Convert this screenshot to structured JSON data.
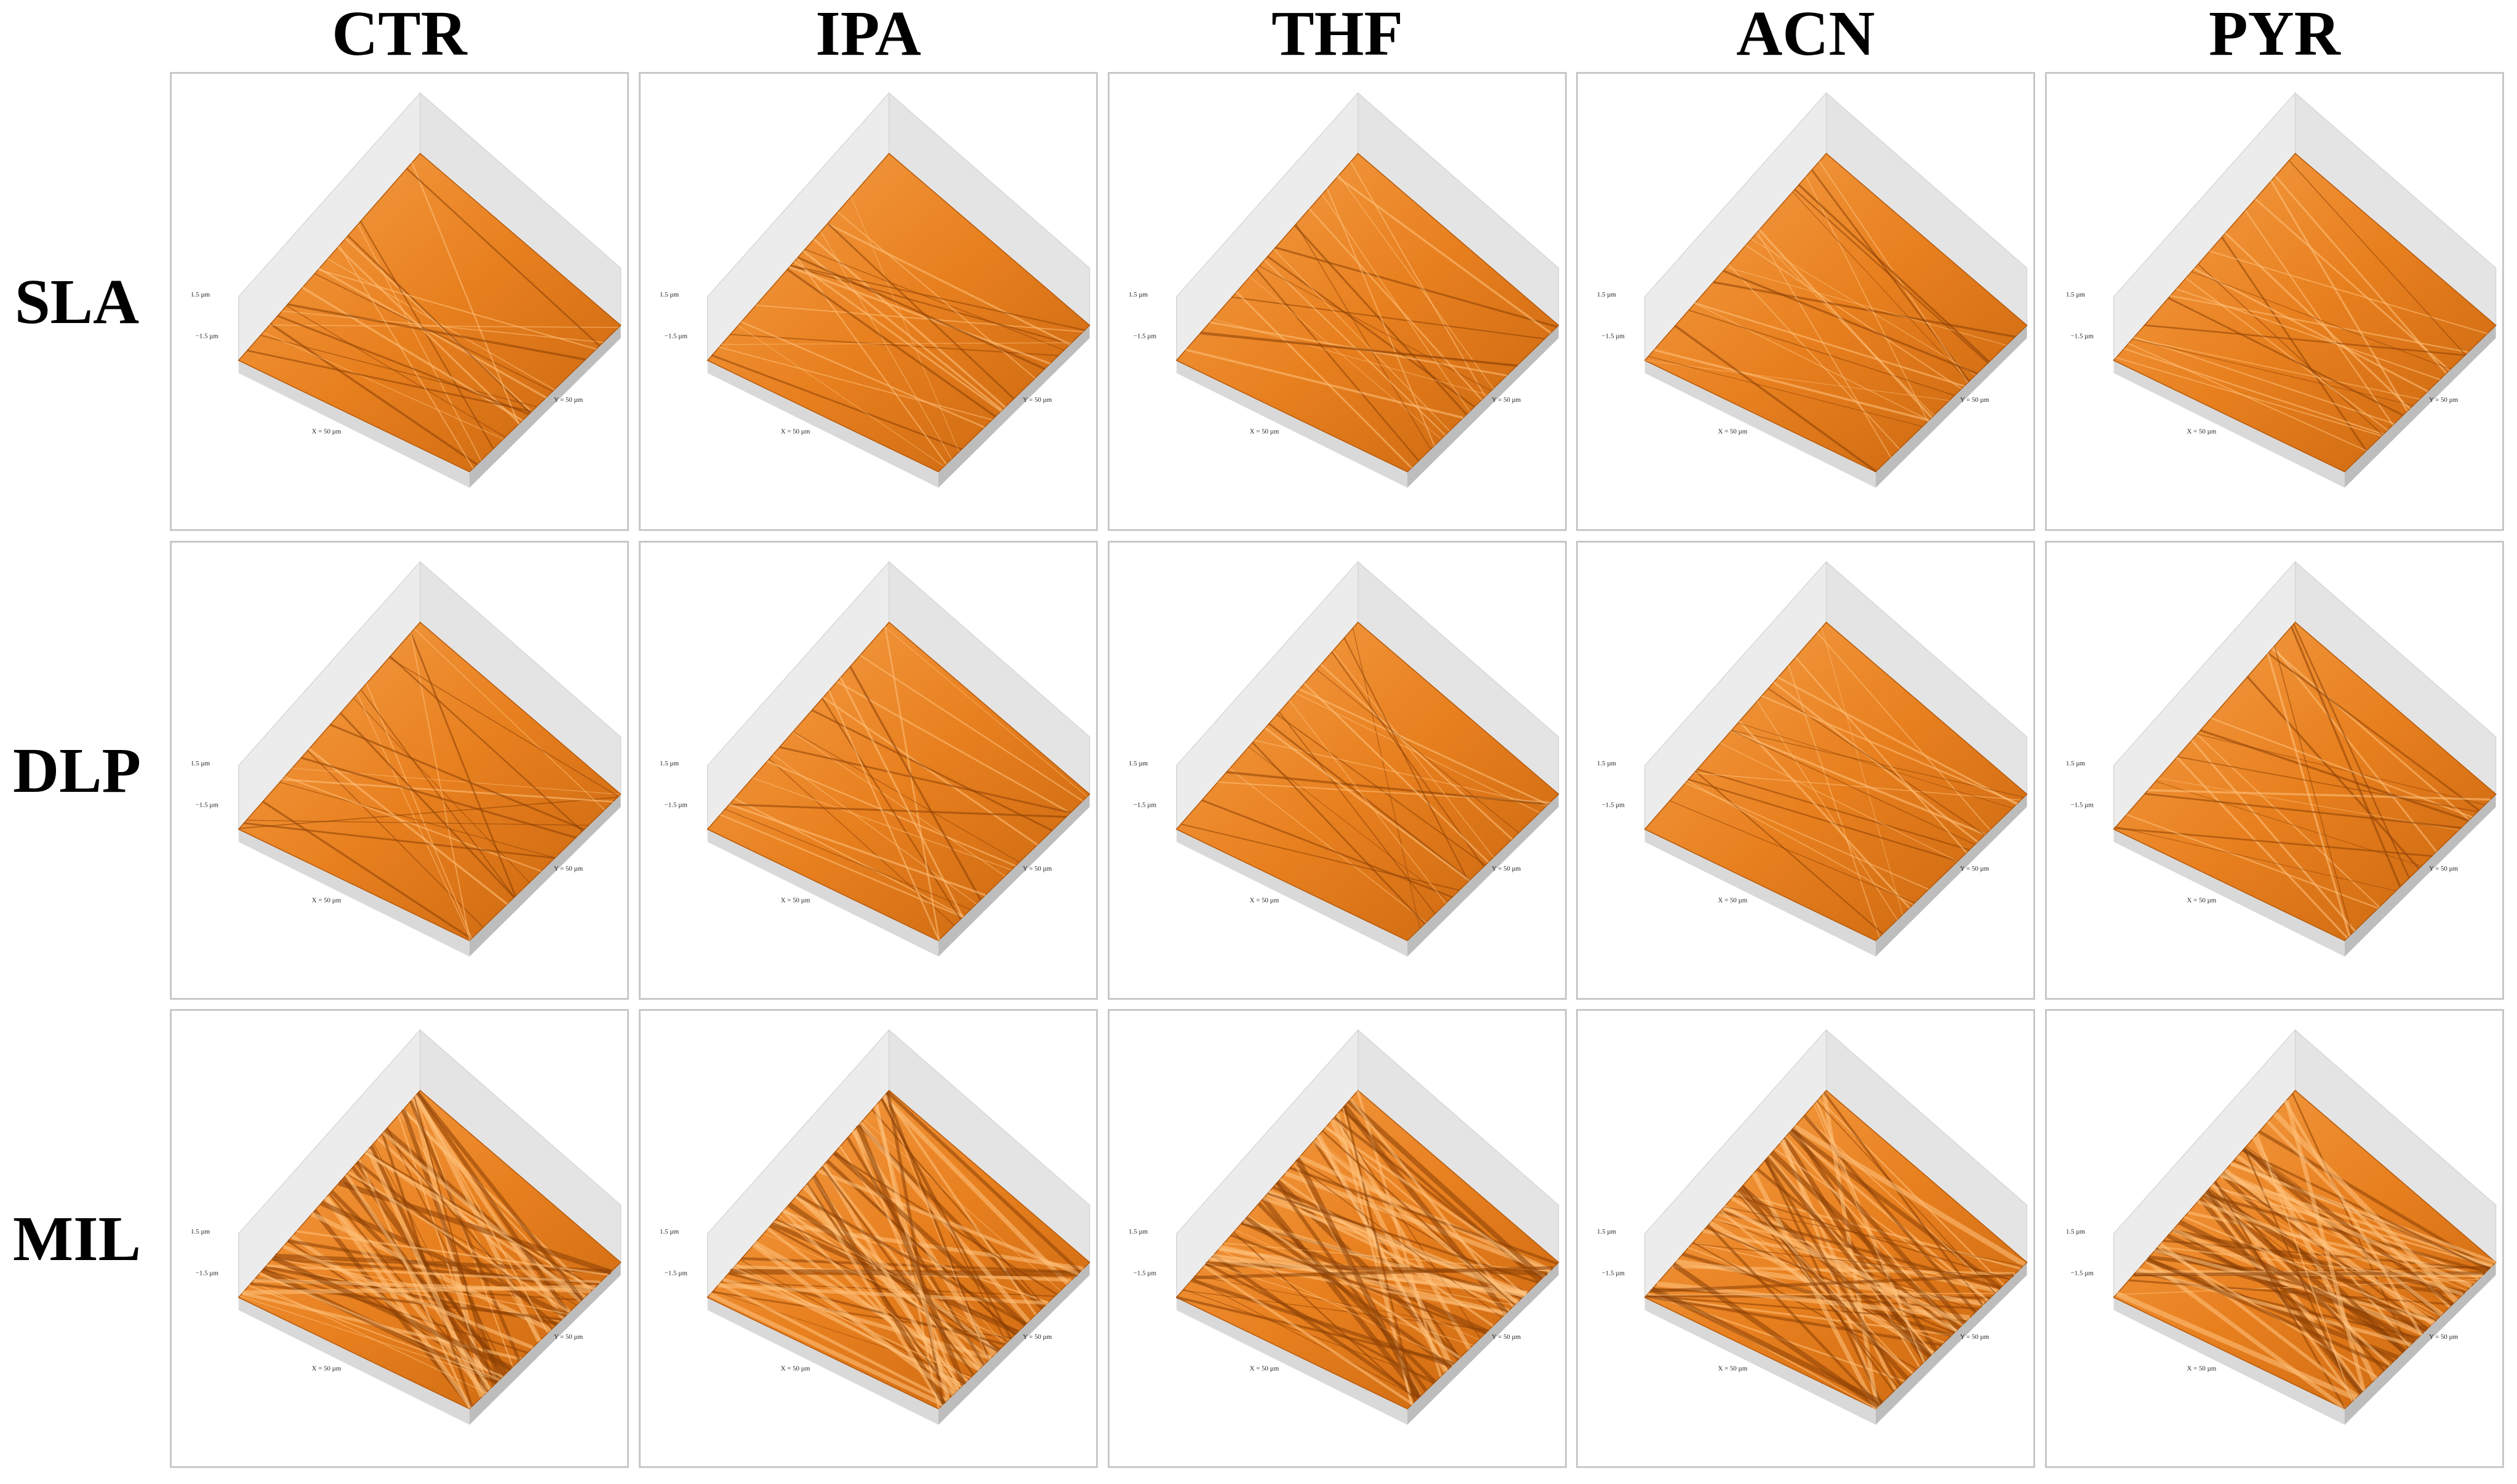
{
  "columns": [
    "CTR",
    "IPA",
    "THF",
    "ACN",
    "PYR"
  ],
  "rows": [
    "SLA",
    "DLP",
    "MIL"
  ],
  "axis_labels": {
    "z_top": "1.5 µm",
    "z_bottom": "−1.5 µm",
    "x": "X = 50 µm",
    "y": "Y = 50 µm"
  }
}
